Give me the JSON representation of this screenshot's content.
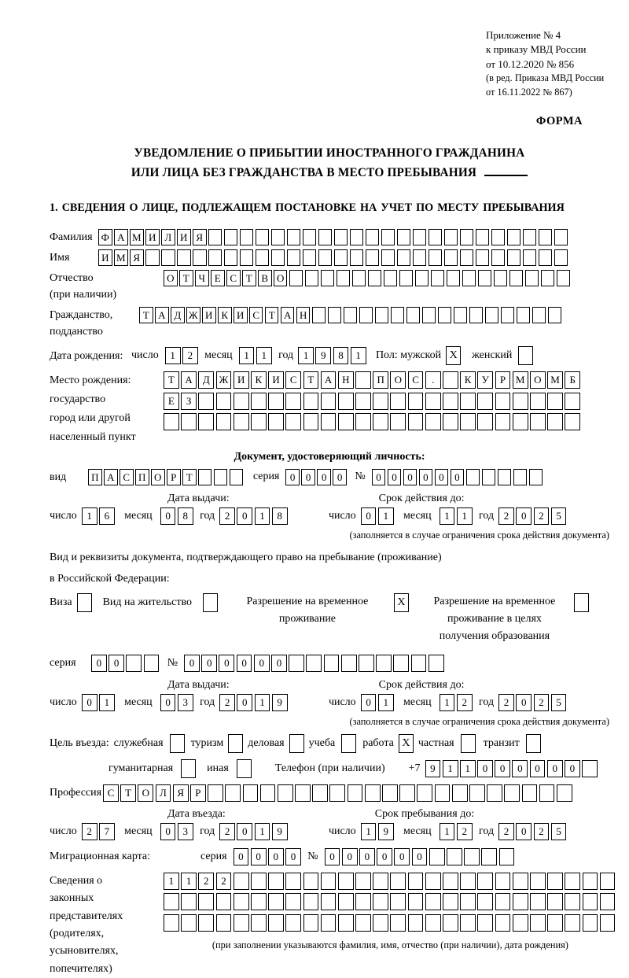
{
  "header": {
    "lines": [
      "Приложение № 4",
      "к приказу МВД России",
      "от 10.12.2020 № 856"
    ],
    "sub_lines": [
      "(в ред. Приказа МВД России",
      "от 16.11.2022 № 867)"
    ],
    "forma": "ФОРМА"
  },
  "title": {
    "line1": "УВЕДОМЛЕНИЕ О ПРИБЫТИИ ИНОСТРАННОГО ГРАЖДАНИНА",
    "line2": "ИЛИ ЛИЦА БЕЗ ГРАЖДАНСТВА В МЕСТО ПРЕБЫВАНИЯ"
  },
  "section1_heading": "1. СВЕДЕНИЯ О ЛИЦЕ, ПОДЛЕЖАЩЕМ ПОСТАНОВКЕ НА УЧЕТ ПО МЕСТУ ПРЕБЫВАНИЯ",
  "labels": {
    "surname": "Фамилия",
    "name": "Имя",
    "patronymic": "Отчество",
    "patronymic_note": "(при наличии)",
    "citizenship1": "Гражданство,",
    "citizenship2": "подданство",
    "birthdate": "Дата рождения:",
    "day": "число",
    "month": "месяц",
    "year": "год",
    "sex_male": "Пол: мужской",
    "sex_female": "женский",
    "birthplace1": "Место рождения:",
    "birthplace2": "государство",
    "birthplace3": "город или другой",
    "birthplace4": "населенный пункт",
    "identity_doc": "Документ, удостоверяющий личность:",
    "doc_kind": "вид",
    "series": "серия",
    "number": "№",
    "issue_date": "Дата выдачи:",
    "expiry_date": "Срок действия до:",
    "expiry_note": "(заполняется в случае ограничения срока действия документа)",
    "residence_doc1": "Вид и реквизиты документа, подтверждающего право на пребывание (проживание)",
    "residence_doc2": "в Российской Федерации:",
    "visa": "Виза",
    "residence_permit": "Вид на жительство",
    "rvp1": "Разрешение на временное",
    "rvp2": "проживание",
    "rvp_edu1": "Разрешение на временное",
    "rvp_edu2": "проживание в целях",
    "rvp_edu3": "получения образования",
    "purpose": "Цель въезда:",
    "purpose_business": "служебная",
    "purpose_tourism": "туризм",
    "purpose_commercial": "деловая",
    "purpose_study": "учеба",
    "purpose_work": "работа",
    "purpose_private": "частная",
    "purpose_transit": "транзит",
    "purpose_humanitarian": "гуманитарная",
    "purpose_other": "иная",
    "phone": "Телефон (при наличии)",
    "phone_prefix": "+7",
    "profession": "Профессия",
    "entry_date": "Дата въезда:",
    "stay_until": "Срок пребывания до:",
    "migration_card": "Миграционная карта:",
    "representatives": [
      "Сведения о",
      "законных",
      "представителях",
      "(родителях,",
      "усыновителях,",
      "попечителях)"
    ],
    "representatives_note": "(при заполнении указываются фамилия, имя, отчество (при наличии), дата рождения)"
  },
  "boxes": {
    "surname": {
      "len": 30,
      "value": "ФАМИЛИЯ"
    },
    "name": {
      "len": 30,
      "value": "ИМЯ"
    },
    "patronymic": {
      "len": 26,
      "value": "ОТЧЕСТВО"
    },
    "citizenship": {
      "len": 27,
      "value": "ТАДЖИКИСТАН"
    },
    "birth_day": {
      "len": 2,
      "value": "12"
    },
    "birth_month": {
      "len": 2,
      "value": "11"
    },
    "birth_year": {
      "len": 4,
      "value": "1981"
    },
    "sex_male": {
      "len": 1,
      "value": "X"
    },
    "sex_female": {
      "len": 1,
      "value": ""
    },
    "birthplace1": {
      "len": 24,
      "value": "ТАДЖИКИСТАН ПОС. КУРМОМБ"
    },
    "birthplace2": {
      "len": 24,
      "value": "ЕЗ"
    },
    "birthplace3": {
      "len": 24,
      "value": ""
    },
    "doc_kind": {
      "len": 10,
      "value": "ПАСПОРТ"
    },
    "doc_series": {
      "len": 4,
      "value": "0000"
    },
    "doc_number": {
      "len": 11,
      "value": "000000"
    },
    "doc_issue_day": {
      "len": 2,
      "value": "16"
    },
    "doc_issue_month": {
      "len": 2,
      "value": "08"
    },
    "doc_issue_year": {
      "len": 4,
      "value": "2018"
    },
    "doc_expiry_day": {
      "len": 2,
      "value": "01"
    },
    "doc_expiry_month": {
      "len": 2,
      "value": "11"
    },
    "doc_expiry_year": {
      "len": 4,
      "value": "2025"
    },
    "visa_cb": {
      "len": 1,
      "value": ""
    },
    "residence_permit_cb": {
      "len": 1,
      "value": ""
    },
    "rvp_cb": {
      "len": 1,
      "value": "X"
    },
    "rvp_edu_cb": {
      "len": 1,
      "value": ""
    },
    "permit_series": {
      "len": 4,
      "value": "00"
    },
    "permit_number": {
      "len": 15,
      "value": "000000"
    },
    "permit_issue_day": {
      "len": 2,
      "value": "01"
    },
    "permit_issue_month": {
      "len": 2,
      "value": "03"
    },
    "permit_issue_year": {
      "len": 4,
      "value": "2019"
    },
    "permit_expiry_day": {
      "len": 2,
      "value": "01"
    },
    "permit_expiry_month": {
      "len": 2,
      "value": "12"
    },
    "permit_expiry_year": {
      "len": 4,
      "value": "2025"
    },
    "purpose_business": {
      "len": 1,
      "value": ""
    },
    "purpose_tourism": {
      "len": 1,
      "value": ""
    },
    "purpose_commercial": {
      "len": 1,
      "value": ""
    },
    "purpose_study": {
      "len": 1,
      "value": ""
    },
    "purpose_work": {
      "len": 1,
      "value": "X"
    },
    "purpose_private": {
      "len": 1,
      "value": ""
    },
    "purpose_transit": {
      "len": 1,
      "value": ""
    },
    "purpose_humanitarian": {
      "len": 1,
      "value": ""
    },
    "purpose_other": {
      "len": 1,
      "value": ""
    },
    "phone": {
      "len": 10,
      "value": "911000000"
    },
    "profession": {
      "len": 27,
      "value": "СТОЛЯР"
    },
    "entry_day": {
      "len": 2,
      "value": "27"
    },
    "entry_month": {
      "len": 2,
      "value": "03"
    },
    "entry_year": {
      "len": 4,
      "value": "2019"
    },
    "stay_day": {
      "len": 2,
      "value": "19"
    },
    "stay_month": {
      "len": 2,
      "value": "12"
    },
    "stay_year": {
      "len": 4,
      "value": "2025"
    },
    "migcard_series": {
      "len": 4,
      "value": "0000"
    },
    "migcard_number": {
      "len": 11,
      "value": "000000"
    },
    "reps_row1": {
      "len": 26,
      "value": "1122"
    },
    "reps_row2": {
      "len": 26,
      "value": ""
    },
    "reps_row3": {
      "len": 26,
      "value": ""
    }
  }
}
